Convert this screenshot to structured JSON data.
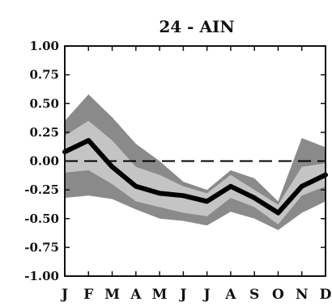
{
  "chart_data": {
    "type": "area",
    "title": "24 - AIN",
    "xlabel": "",
    "ylabel": "",
    "categories": [
      "J",
      "F",
      "M",
      "A",
      "M",
      "J",
      "J",
      "A",
      "S",
      "O",
      "N",
      "D"
    ],
    "ylim": [
      -1.0,
      1.0
    ],
    "yticks": [
      1.0,
      0.75,
      0.5,
      0.25,
      0.0,
      -0.25,
      -0.5,
      -0.75,
      -1.0
    ],
    "ytick_labels": [
      "1.00",
      "0.75",
      "0.50",
      "0.25",
      "0.00",
      "-0.25",
      "-0.50",
      "-0.75",
      "-1.00"
    ],
    "zero_line": "dashed",
    "grid": false,
    "legend": "none",
    "colors": {
      "outer_band": "#8a8a8a",
      "inner_band": "#c4c4c4",
      "median_line": "#000000",
      "zero_line": "#000000"
    },
    "series": [
      {
        "role": "outer_upper",
        "values": [
          0.35,
          0.58,
          0.38,
          0.15,
          0.0,
          -0.18,
          -0.25,
          -0.08,
          -0.15,
          -0.35,
          0.2,
          0.12
        ]
      },
      {
        "role": "outer_lower",
        "values": [
          -0.32,
          -0.3,
          -0.33,
          -0.42,
          -0.5,
          -0.52,
          -0.56,
          -0.44,
          -0.5,
          -0.6,
          -0.45,
          -0.35
        ]
      },
      {
        "role": "inner_upper",
        "values": [
          0.22,
          0.35,
          0.18,
          -0.05,
          -0.12,
          -0.22,
          -0.28,
          -0.12,
          -0.25,
          -0.38,
          -0.05,
          -0.02
        ]
      },
      {
        "role": "inner_lower",
        "values": [
          -0.1,
          -0.08,
          -0.2,
          -0.35,
          -0.4,
          -0.45,
          -0.48,
          -0.32,
          -0.4,
          -0.55,
          -0.3,
          -0.22
        ]
      },
      {
        "role": "median",
        "values": [
          0.08,
          0.18,
          -0.05,
          -0.22,
          -0.28,
          -0.3,
          -0.35,
          -0.22,
          -0.32,
          -0.45,
          -0.22,
          -0.12
        ]
      }
    ]
  }
}
